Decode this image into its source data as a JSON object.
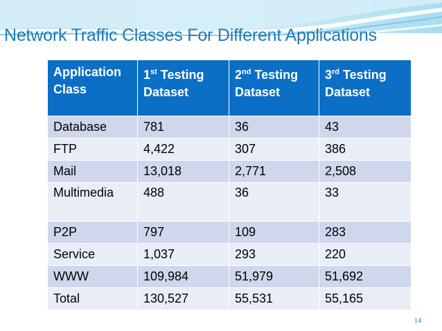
{
  "slide": {
    "title": "Network Traffic Classes For Different Applications",
    "page_number": "14"
  },
  "table": {
    "headers": [
      {
        "line1": "Application",
        "line2": "Class",
        "ord_num": "",
        "ord_sup": "",
        "ord_word": ""
      },
      {
        "line1": "",
        "line2": "Dataset",
        "ord_num": "1",
        "ord_sup": "st",
        "ord_word": " Testing"
      },
      {
        "line1": "",
        "line2": "Dataset",
        "ord_num": "2",
        "ord_sup": "nd",
        "ord_word": " Testing"
      },
      {
        "line1": "",
        "line2": "Dataset",
        "ord_num": "3",
        "ord_sup": "rd",
        "ord_word": " Testing"
      }
    ],
    "rows": [
      [
        "Database",
        "781",
        "36",
        "43"
      ],
      [
        "FTP",
        "4,422",
        "307",
        "386"
      ],
      [
        "Mail",
        "13,018",
        "2,771",
        "2,508"
      ],
      [
        "Multimedia",
        "488",
        "36",
        "33"
      ],
      [
        "P2P",
        "797",
        "109",
        "283"
      ],
      [
        "Service",
        "1,037",
        "293",
        "220"
      ],
      [
        "WWW",
        "109,984",
        "51,979",
        "51,692"
      ],
      [
        "Total",
        "130,527",
        "55,531",
        "55,165"
      ]
    ]
  },
  "colors": {
    "header_bg": "#0b6fc6",
    "row_dark": "#cfd7ec",
    "row_light": "#e9edf6",
    "title": "#1d7bb8"
  }
}
